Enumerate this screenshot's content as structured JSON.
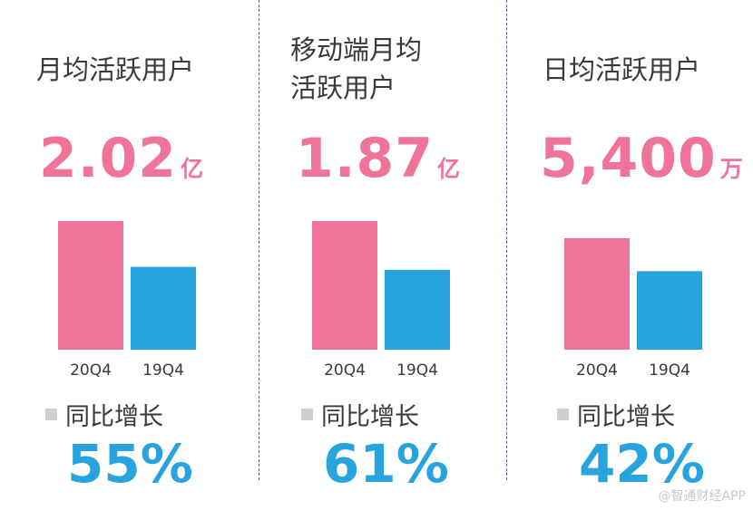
{
  "colors": {
    "current": "#f0749a",
    "previous": "#27a3de",
    "growth": "#27a3de",
    "legend_marker": "#cfcfcf"
  },
  "panels": [
    {
      "title_lines": [
        "月均活跃用户"
      ],
      "value": "2.02",
      "unit": "亿",
      "legend": "同比增长",
      "growth": "55%"
    },
    {
      "title_lines": [
        "移动端月均",
        "活跃用户"
      ],
      "value": "1.87",
      "unit": "亿",
      "legend": "同比增长",
      "growth": "61%"
    },
    {
      "title_lines": [
        "日均活跃用户"
      ],
      "value": "5,400",
      "unit": "万",
      "legend": "同比增长",
      "growth": "42%"
    }
  ],
  "chart_data": [
    {
      "type": "bar",
      "categories": [
        "20Q4",
        "19Q4"
      ],
      "values": [
        2.02,
        1.3
      ],
      "ylim": [
        0,
        2.02
      ]
    },
    {
      "type": "bar",
      "categories": [
        "20Q4",
        "19Q4"
      ],
      "values": [
        1.87,
        1.16
      ],
      "ylim": [
        0,
        1.87
      ]
    },
    {
      "type": "bar",
      "categories": [
        "20Q4",
        "19Q4"
      ],
      "values": [
        5400,
        3800
      ],
      "ylim": [
        0,
        6230
      ]
    }
  ],
  "watermark": "@智通财经APP"
}
